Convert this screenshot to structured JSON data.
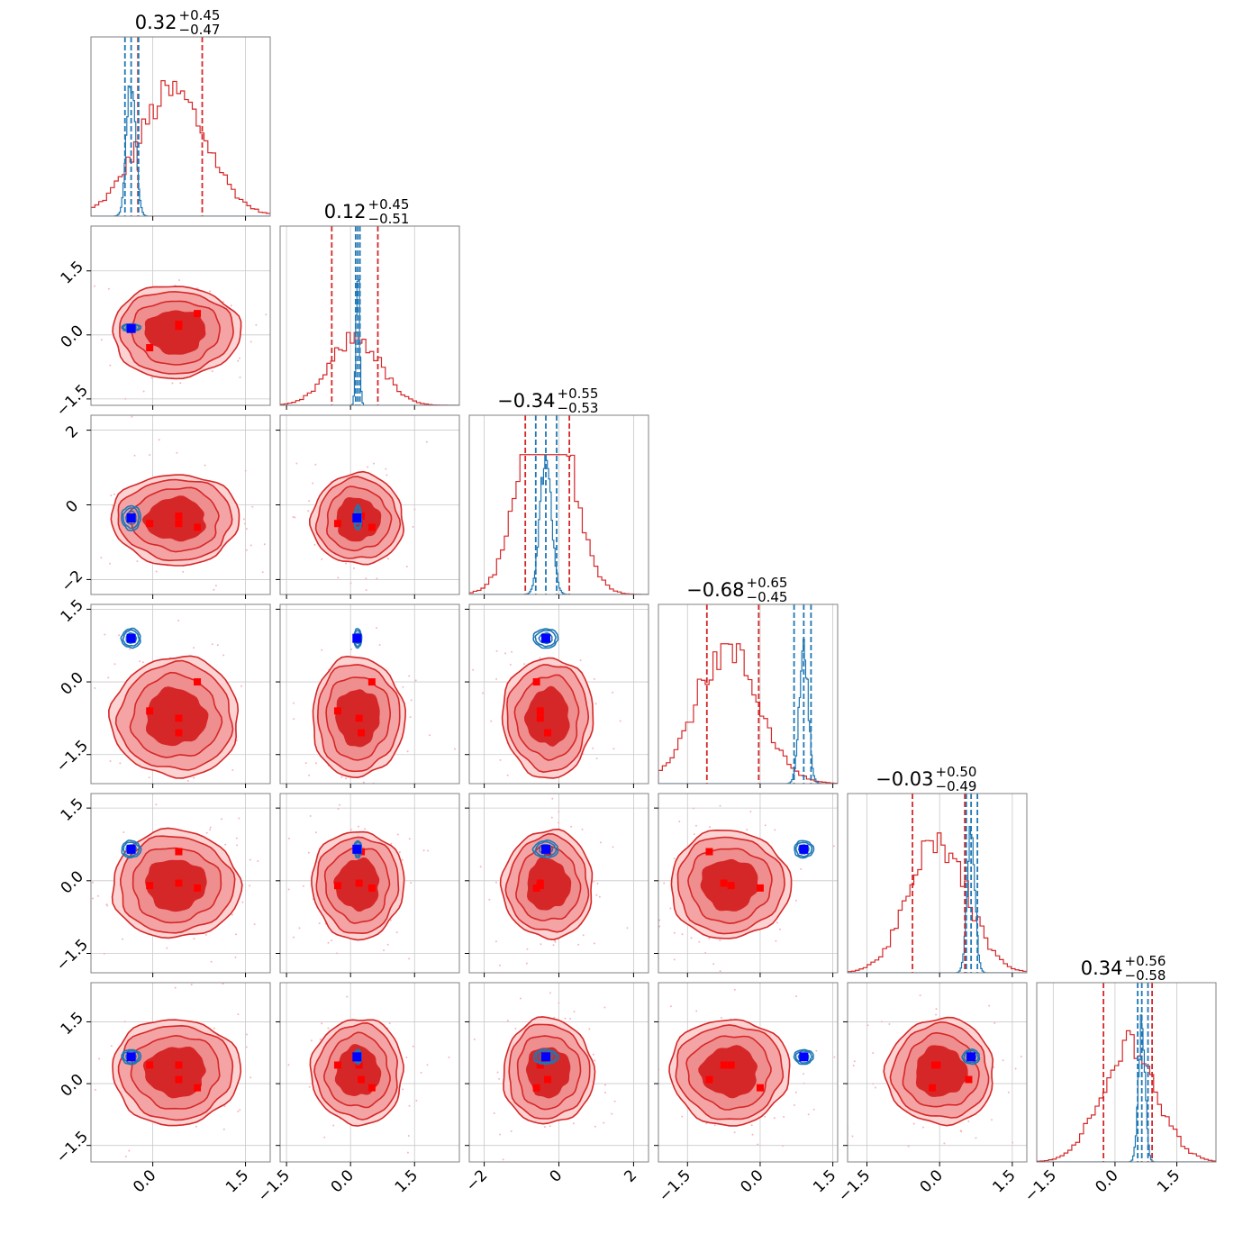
{
  "chart_data": {
    "type": "corner",
    "n_params": 6,
    "colors": {
      "posterior_a": "#d62728",
      "posterior_a_fill": "#f08e8e",
      "posterior_a_inner": "#d62728",
      "posterior_b": "#1f77b4",
      "truth_marker": "#0000ff",
      "sample_marker": "#ff0000",
      "grid": "#c8c8c8",
      "axes": "#808080"
    },
    "grid": true,
    "params": [
      {
        "median": 0.32,
        "plus": 0.45,
        "minus": 0.47,
        "title": [
          "0.32",
          "+0.45",
          "−0.47"
        ],
        "range": [
          -1.0,
          1.9
        ],
        "ticks": [
          0.0,
          1.5
        ],
        "tick_labels": [
          "0.0",
          "1.5"
        ]
      },
      {
        "median": 0.12,
        "plus": 0.45,
        "minus": 0.51,
        "title": [
          "0.12",
          "+0.45",
          "−0.51"
        ],
        "range": [
          -1.65,
          2.55
        ],
        "ticks": [
          -1.5,
          0.0,
          1.5
        ],
        "tick_labels": [
          "−1.5",
          "0.0",
          "1.5"
        ]
      },
      {
        "median": -0.34,
        "plus": 0.55,
        "minus": 0.53,
        "title": [
          "−0.34",
          "+0.55",
          "−0.53"
        ],
        "range": [
          -2.4,
          2.4
        ],
        "ticks": [
          -2,
          0,
          2
        ],
        "tick_labels": [
          "−2",
          "0",
          "2"
        ]
      },
      {
        "median": -0.68,
        "plus": 0.65,
        "minus": 0.45,
        "title": [
          "−0.68",
          "+0.65",
          "−0.45"
        ],
        "range": [
          -2.1,
          1.6
        ],
        "ticks": [
          -1.5,
          0.0,
          1.5
        ],
        "tick_labels": [
          "−1.5",
          "0.0",
          "1.5"
        ]
      },
      {
        "median": -0.03,
        "plus": 0.5,
        "minus": 0.49,
        "title": [
          "−0.03",
          "+0.50",
          "−0.49"
        ],
        "range": [
          -1.9,
          1.8
        ],
        "ticks": [
          -1.5,
          0.0,
          1.5
        ],
        "tick_labels": [
          "−1.5",
          "0.0",
          "1.5"
        ]
      },
      {
        "median": 0.34,
        "plus": 0.56,
        "minus": 0.58,
        "title": [
          "0.34",
          "+0.56",
          "−0.58"
        ],
        "range": [
          -1.9,
          2.45
        ],
        "ticks": [
          -1.5,
          0.0,
          1.5
        ],
        "tick_labels": [
          "−1.5",
          "0.0",
          "1.5"
        ]
      }
    ],
    "posterior_b": [
      {
        "mean": -0.35,
        "sd": 0.07,
        "quantiles": [
          -0.45,
          -0.23
        ]
      },
      {
        "mean": 0.17,
        "sd": 0.04,
        "quantiles": [
          0.12,
          0.22
        ]
      },
      {
        "mean": -0.35,
        "sd": 0.15,
        "quantiles": [
          -0.62,
          -0.06
        ]
      },
      {
        "mean": 0.9,
        "sd": 0.09,
        "quantiles": [
          0.7,
          1.05
        ]
      },
      {
        "mean": 0.65,
        "sd": 0.08,
        "quantiles": [
          0.55,
          0.78
        ]
      },
      {
        "mean": 0.65,
        "sd": 0.08,
        "quantiles": [
          0.55,
          0.8
        ]
      }
    ],
    "posterior_a_quantiles": [
      [
        -0.24,
        0.8
      ],
      [
        -0.44,
        0.64
      ],
      [
        -0.9,
        0.28
      ],
      [
        -1.1,
        -0.03
      ],
      [
        -0.56,
        0.52
      ],
      [
        -0.28,
        0.9
      ]
    ],
    "truth": [
      -0.35,
      0.15,
      -0.35,
      0.9,
      0.65,
      0.65
    ],
    "samples": [
      [
        -0.05,
        0.42,
        0.42,
        0.72
      ],
      [
        -0.3,
        0.2,
        0.25,
        0.5
      ],
      [
        -0.5,
        -0.5,
        -0.3,
        -0.6
      ],
      [
        -0.6,
        -0.75,
        -1.05,
        0.0
      ],
      [
        -0.1,
        -0.05,
        0.6,
        -0.15
      ],
      [
        0.45,
        0.45,
        0.1,
        -0.1
      ]
    ]
  }
}
